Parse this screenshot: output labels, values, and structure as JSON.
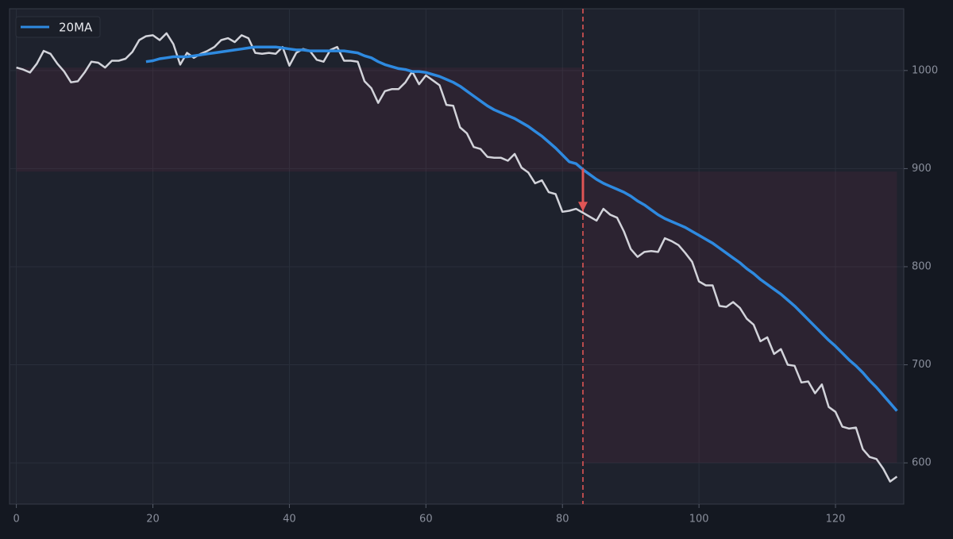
{
  "chart_data": {
    "type": "line",
    "x": [
      0,
      1,
      2,
      3,
      4,
      5,
      6,
      7,
      8,
      9,
      10,
      11,
      12,
      13,
      14,
      15,
      16,
      17,
      18,
      19,
      20,
      21,
      22,
      23,
      24,
      25,
      26,
      27,
      28,
      29,
      30,
      31,
      32,
      33,
      34,
      35,
      36,
      37,
      38,
      39,
      40,
      41,
      42,
      43,
      44,
      45,
      46,
      47,
      48,
      49,
      50,
      51,
      52,
      53,
      54,
      55,
      56,
      57,
      58,
      59,
      60,
      61,
      62,
      63,
      64,
      65,
      66,
      67,
      68,
      69,
      70,
      71,
      72,
      73,
      74,
      75,
      76,
      77,
      78,
      79,
      80,
      81,
      82,
      83,
      84,
      85,
      86,
      87,
      88,
      89,
      90,
      91,
      92,
      93,
      94,
      95,
      96,
      97,
      98,
      99,
      100,
      101,
      102,
      103,
      104,
      105,
      106,
      107,
      108,
      109,
      110,
      111,
      112,
      113,
      114,
      115,
      116,
      117,
      118,
      119,
      120,
      121,
      122,
      123,
      124,
      125,
      126,
      127,
      128,
      129
    ],
    "series": [
      {
        "color": "#d2d3da",
        "values": [
          1003,
          1001,
          998,
          1007,
          1020,
          1017,
          1007,
          999,
          988,
          989,
          998,
          1009,
          1008,
          1003,
          1010,
          1010,
          1012,
          1019,
          1031,
          1035,
          1036,
          1031,
          1038,
          1027,
          1006,
          1018,
          1013,
          1017,
          1020,
          1024,
          1031,
          1033,
          1029,
          1036,
          1033,
          1018,
          1017,
          1018,
          1017,
          1024,
          1005,
          1018,
          1022,
          1020,
          1011,
          1009,
          1021,
          1024,
          1010,
          1010,
          1009,
          989,
          982,
          967,
          979,
          981,
          981,
          988,
          999,
          986,
          995,
          990,
          985,
          965,
          964,
          942,
          936,
          922,
          920,
          912,
          911,
          911,
          908,
          915,
          901,
          896,
          885,
          888,
          876,
          874,
          856,
          857,
          859,
          855,
          851,
          847,
          859,
          853,
          850,
          836,
          818,
          810,
          815,
          816,
          815,
          829,
          826,
          822,
          814,
          805,
          785,
          781,
          781,
          760,
          759,
          764,
          758,
          747,
          741,
          724,
          728,
          711,
          716,
          700,
          699,
          682,
          683,
          671,
          680,
          657,
          652,
          637,
          635,
          636,
          614,
          606,
          604,
          594,
          581,
          586
        ]
      },
      {
        "name": "20MA",
        "color": "#2e8ae0",
        "values": [
          null,
          null,
          null,
          null,
          null,
          null,
          null,
          null,
          null,
          null,
          null,
          null,
          null,
          null,
          null,
          null,
          null,
          null,
          null,
          1009,
          1010,
          1012,
          1013,
          1014,
          1014,
          1014,
          1015,
          1016,
          1017,
          1018,
          1019,
          1020,
          1021,
          1022,
          1023,
          1024,
          1024,
          1024,
          1024,
          1023,
          1022,
          1021,
          1021,
          1020,
          1020,
          1020,
          1020,
          1020,
          1020,
          1019,
          1018,
          1015,
          1013,
          1009,
          1006,
          1004,
          1002,
          1001,
          999,
          999,
          998,
          996,
          994,
          991,
          988,
          984,
          979,
          974,
          969,
          964,
          960,
          957,
          954,
          951,
          947,
          943,
          938,
          933,
          927,
          921,
          914,
          907,
          905,
          899,
          894,
          889,
          885,
          882,
          879,
          876,
          872,
          867,
          863,
          858,
          853,
          849,
          846,
          843,
          840,
          836,
          832,
          828,
          824,
          819,
          814,
          809,
          804,
          798,
          793,
          787,
          782,
          777,
          772,
          766,
          760,
          753,
          746,
          739,
          732,
          725,
          719,
          712,
          705,
          699,
          692,
          684,
          677,
          669,
          661,
          653
        ]
      }
    ],
    "xlim": [
      -1,
      130
    ],
    "ylim": [
      558,
      1063
    ],
    "xticks": [
      0,
      20,
      40,
      60,
      80,
      100,
      120
    ],
    "yticks": [
      600,
      700,
      800,
      900,
      1000
    ],
    "grid": true,
    "legend": "upper left",
    "shaded_regions": [
      {
        "x": [
          0,
          83
        ],
        "y": [
          897,
          1003
        ]
      },
      {
        "x": [
          83,
          129
        ],
        "y": [
          600,
          897
        ]
      }
    ],
    "event": {
      "x": 83,
      "from": 900,
      "to": 858,
      "color": "#e05555"
    }
  }
}
